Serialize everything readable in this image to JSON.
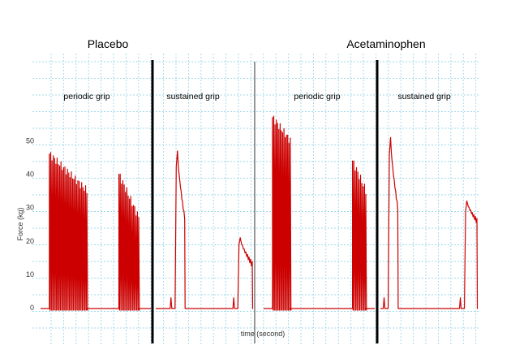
{
  "chart_data": {
    "type": "line",
    "title": "",
    "xlabel": "time (second)",
    "ylabel": "Force (kg)",
    "ylim": [
      0,
      55
    ],
    "y_ticks": [
      "0",
      "10",
      "20",
      "30",
      "40",
      "50"
    ],
    "grid": true,
    "grid_color": "#9ed8ea",
    "line_color": "#cc0000",
    "divider_color": "#000000",
    "group_titles": [
      "Placebo",
      "Acetaminophen"
    ],
    "panels": [
      {
        "label": "periodic grip",
        "kind": "periodic",
        "bursts": [
          {
            "start": 0.08,
            "end": 0.42,
            "peak": 46,
            "end_level": 35
          },
          {
            "start": 0.71,
            "end": 0.89,
            "peak": 40,
            "end_level": 27
          }
        ]
      },
      {
        "label": "sustained grip",
        "kind": "sustained",
        "bursts": [
          {
            "start": 0.2,
            "end": 0.3,
            "peak": 47,
            "end_level": 27
          },
          {
            "start": 0.85,
            "end": 1.0,
            "peak": 21,
            "end_level": 13
          }
        ]
      },
      {
        "label": "periodic grip",
        "kind": "periodic",
        "bursts": [
          {
            "start": 0.08,
            "end": 0.24,
            "peak": 57,
            "end_level": 50
          },
          {
            "start": 0.8,
            "end": 0.92,
            "peak": 44,
            "end_level": 35
          }
        ]
      },
      {
        "label": "sustained grip",
        "kind": "sustained",
        "bursts": [
          {
            "start": 0.08,
            "end": 0.18,
            "peak": 51,
            "end_level": 30
          },
          {
            "start": 0.87,
            "end": 1.0,
            "peak": 32,
            "end_level": 26
          }
        ]
      }
    ]
  }
}
